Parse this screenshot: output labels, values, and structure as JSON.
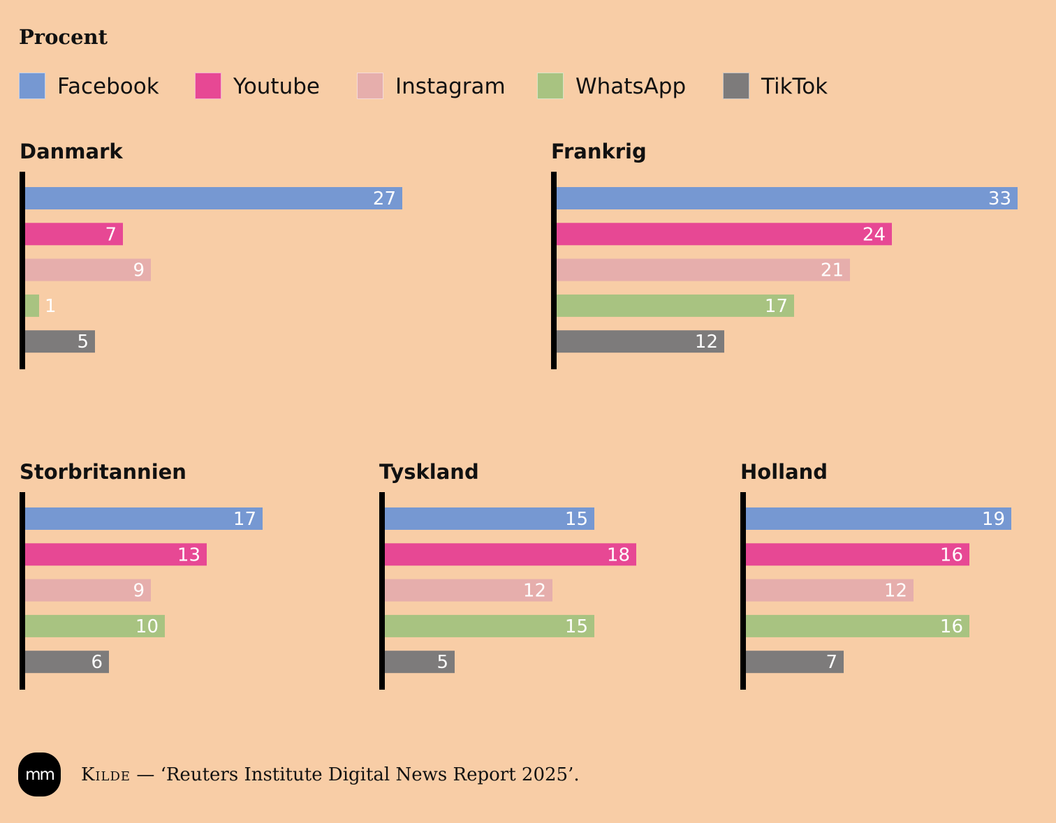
{
  "title": "Procent",
  "colors": {
    "Facebook": "#7698d2",
    "Youtube": "#e74894",
    "Instagram": "#e6aeac",
    "WhatsApp": "#a8c381",
    "TikTok": "#7d7b7b"
  },
  "chart_data": {
    "type": "bar",
    "orientation": "horizontal",
    "unit": "Procent",
    "legend": [
      "Facebook",
      "Youtube",
      "Instagram",
      "WhatsApp",
      "TikTok"
    ],
    "legend_placement": "top",
    "panels": [
      {
        "title": "Danmark",
        "values": [
          27,
          7,
          9,
          1,
          5
        ]
      },
      {
        "title": "Frankrig",
        "values": [
          33,
          24,
          21,
          17,
          12
        ]
      },
      {
        "title": "Storbritannien",
        "values": [
          17,
          13,
          9,
          10,
          6
        ]
      },
      {
        "title": "Tyskland",
        "values": [
          15,
          18,
          12,
          15,
          5
        ]
      },
      {
        "title": "Holland",
        "values": [
          19,
          16,
          12,
          16,
          7
        ]
      }
    ]
  },
  "source": {
    "logo": "mm",
    "label": "Kilde",
    "dash": "—",
    "text": "‘Reuters Institute Digital News Report 2025’."
  }
}
